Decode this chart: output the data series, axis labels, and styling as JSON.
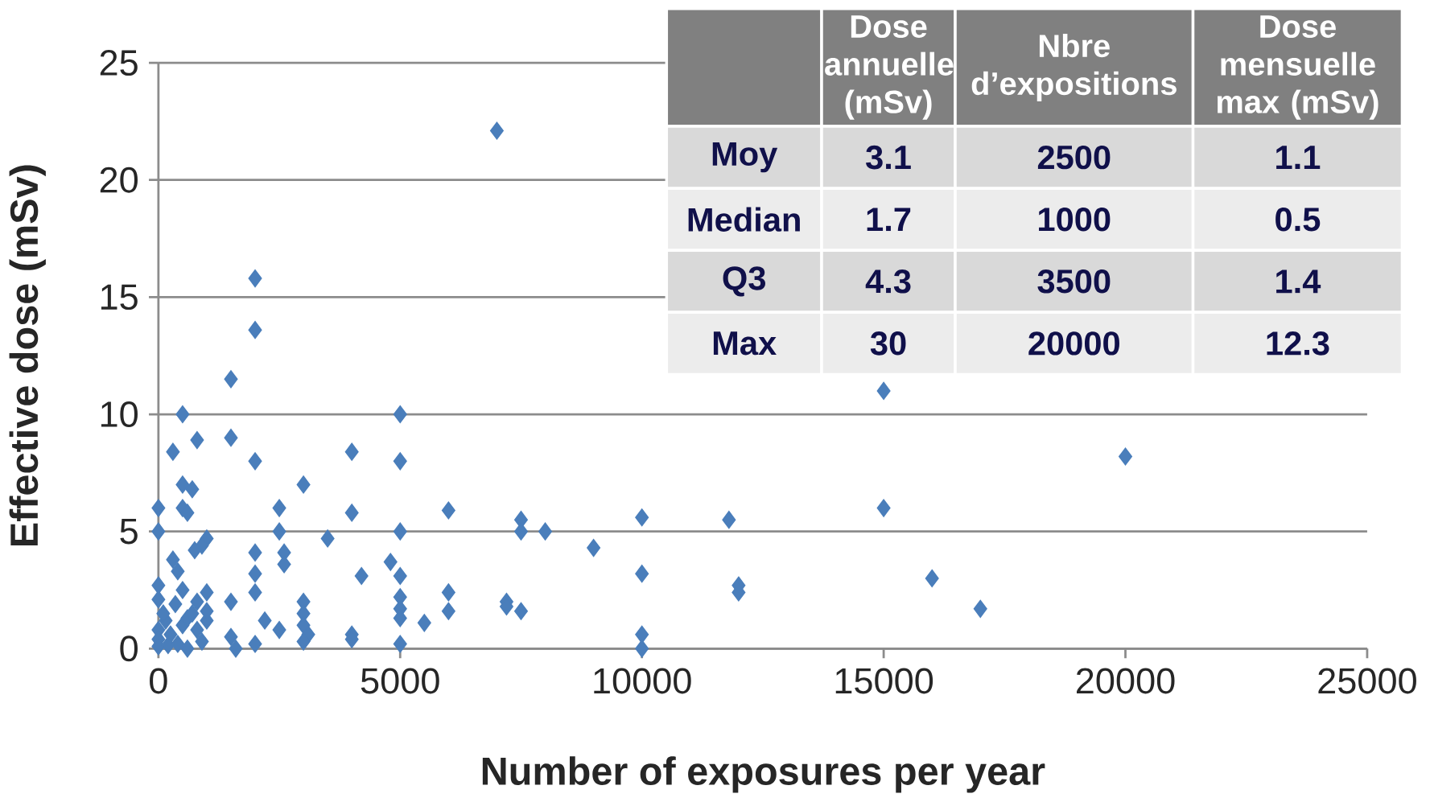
{
  "chart_data": [
    {
      "type": "scatter",
      "xlabel": "Number of exposures per year",
      "ylabel": "Effective dose (mSv)",
      "xlim": [
        0,
        25000
      ],
      "ylim": [
        0,
        25
      ],
      "xticks": [
        0,
        5000,
        10000,
        15000,
        20000,
        25000
      ],
      "yticks": [
        0,
        5,
        10,
        15,
        20,
        25
      ],
      "grid": "y",
      "marker": "diamond",
      "color": "#4a7ebb",
      "x": [
        7000,
        2000,
        2000,
        1500,
        500,
        5000,
        15000,
        20000,
        300,
        800,
        1500,
        2000,
        4000,
        5000,
        3000,
        500,
        700,
        0,
        500,
        600,
        2500,
        4000,
        6000,
        7500,
        10000,
        11800,
        15000,
        0,
        2500,
        5000,
        7500,
        8000,
        3500,
        9000,
        1000,
        900,
        750,
        2000,
        2600,
        2600,
        300,
        400,
        2000,
        4800,
        5000,
        4200,
        10000,
        16000,
        12000,
        12000,
        17000,
        0,
        500,
        1000,
        2000,
        6000,
        0,
        1500,
        3000,
        5000,
        7200,
        7200,
        7500,
        6000,
        3000,
        5000,
        5000,
        2200,
        5500,
        2500,
        3000,
        3100,
        4000,
        4000,
        3000,
        1500,
        1600,
        2000,
        5000,
        10000,
        10000,
        0,
        0,
        0,
        150,
        250,
        400,
        500,
        600,
        800,
        900,
        1000,
        1000,
        350,
        700,
        200,
        600,
        800,
        100
      ],
      "values": [
        22.1,
        15.8,
        13.6,
        11.5,
        10,
        10,
        11,
        8.2,
        8.4,
        8.9,
        9,
        8,
        8.4,
        8,
        7,
        7,
        6.8,
        6,
        6,
        5.8,
        6,
        5.8,
        5.9,
        5.5,
        5.6,
        5.5,
        6,
        5,
        5,
        5,
        5,
        5,
        4.7,
        4.3,
        4.7,
        4.4,
        4.2,
        4.1,
        4.1,
        3.6,
        3.8,
        3.3,
        3.2,
        3.7,
        3.1,
        3.1,
        3.2,
        3,
        2.7,
        2.4,
        1.7,
        2.7,
        2.5,
        2.4,
        2.4,
        2.4,
        2.1,
        2,
        2,
        2.2,
        2,
        1.8,
        1.6,
        1.6,
        1.5,
        1.7,
        1.3,
        1.2,
        1.1,
        0.8,
        1,
        0.6,
        0.6,
        0.4,
        0.3,
        0.5,
        0,
        0.2,
        0.2,
        0.6,
        0,
        0.8,
        0.4,
        0.1,
        1.2,
        0.6,
        0.2,
        1,
        1.3,
        0.8,
        0.3,
        1.2,
        1.6,
        1.9,
        1.5,
        0.15,
        0,
        2,
        1.5
      ]
    },
    {
      "type": "other",
      "categories": [
        "Dose annuelle (mSv)",
        "Nbre d’expositions",
        "Dose mensuelle max (mSv)"
      ],
      "y_categories": [
        "Moy",
        "Median",
        "Q3",
        "Max"
      ],
      "cell_labels": [
        [
          "3.1",
          "2500",
          "1.1"
        ],
        [
          "1.7",
          "1000",
          "0.5"
        ],
        [
          "4.3",
          "3500",
          "1.4"
        ],
        [
          "30",
          "20000",
          "12.3"
        ]
      ]
    }
  ]
}
